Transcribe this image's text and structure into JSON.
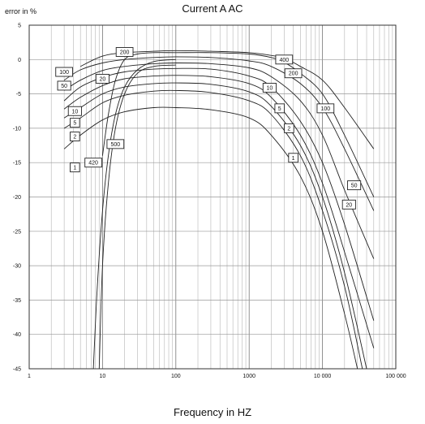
{
  "chart_data": {
    "type": "line",
    "title": "Current A AC",
    "ylabel": "error in %",
    "xlabel": "Frequency in HZ",
    "x_scale": "log",
    "xlim": [
      1,
      100000
    ],
    "ylim": [
      -45,
      5
    ],
    "grid": true,
    "x_ticks": [
      {
        "v": 1,
        "label": "1"
      },
      {
        "v": 10,
        "label": "10"
      },
      {
        "v": 100,
        "label": "100"
      },
      {
        "v": 1000,
        "label": "1000"
      },
      {
        "v": 10000,
        "label": "10 000"
      },
      {
        "v": 100000,
        "label": "100 000"
      }
    ],
    "y_ticks": [
      5,
      0,
      -5,
      -10,
      -15,
      -20,
      -25,
      -30,
      -35,
      -40,
      -45
    ],
    "series": [
      {
        "name": "400",
        "points": [
          [
            5,
            -1
          ],
          [
            10,
            0.5
          ],
          [
            20,
            1
          ],
          [
            50,
            1.2
          ],
          [
            100,
            1.3
          ],
          [
            300,
            1.2
          ],
          [
            1000,
            1
          ],
          [
            2000,
            0.6
          ],
          [
            3000,
            0.2
          ],
          [
            5000,
            -1
          ],
          [
            10000,
            -3
          ],
          [
            20000,
            -7
          ],
          [
            50000,
            -13
          ]
        ]
      },
      {
        "name": "200",
        "points": [
          [
            10,
            -14
          ],
          [
            12,
            -8
          ],
          [
            15,
            -3
          ],
          [
            20,
            0
          ],
          [
            30,
            0.8
          ],
          [
            50,
            1
          ],
          [
            100,
            1
          ],
          [
            300,
            1
          ],
          [
            1000,
            0.8
          ],
          [
            2000,
            0.3
          ],
          [
            3000,
            -0.4
          ],
          [
            5000,
            -2
          ],
          [
            10000,
            -5
          ],
          [
            20000,
            -11
          ],
          [
            50000,
            -20
          ]
        ]
      },
      {
        "name": "100",
        "points": [
          [
            3,
            -3
          ],
          [
            5,
            -1.5
          ],
          [
            10,
            -0.5
          ],
          [
            20,
            0
          ],
          [
            50,
            0.3
          ],
          [
            100,
            0.4
          ],
          [
            300,
            0.3
          ],
          [
            1000,
            -0.2
          ],
          [
            2000,
            -1
          ],
          [
            5000,
            -3.5
          ],
          [
            10000,
            -7
          ],
          [
            20000,
            -13
          ],
          [
            50000,
            -22
          ]
        ]
      },
      {
        "name": "50",
        "points": [
          [
            3,
            -4.5
          ],
          [
            5,
            -3
          ],
          [
            10,
            -1.6
          ],
          [
            20,
            -1
          ],
          [
            50,
            -0.6
          ],
          [
            100,
            -0.5
          ],
          [
            300,
            -0.6
          ],
          [
            1000,
            -1.2
          ],
          [
            2000,
            -2.5
          ],
          [
            5000,
            -6
          ],
          [
            10000,
            -11
          ],
          [
            20000,
            -19
          ],
          [
            50000,
            -29
          ]
        ]
      },
      {
        "name": "20",
        "points": [
          [
            3,
            -6
          ],
          [
            5,
            -4
          ],
          [
            10,
            -2.6
          ],
          [
            20,
            -1.8
          ],
          [
            50,
            -1.4
          ],
          [
            100,
            -1.3
          ],
          [
            300,
            -1.4
          ],
          [
            1000,
            -2.4
          ],
          [
            2000,
            -4
          ],
          [
            5000,
            -9
          ],
          [
            10000,
            -15
          ],
          [
            20000,
            -24
          ],
          [
            50000,
            -38
          ]
        ]
      },
      {
        "name": "10",
        "points": [
          [
            3,
            -7.2
          ],
          [
            5,
            -5.5
          ],
          [
            10,
            -3.8
          ],
          [
            20,
            -2.8
          ],
          [
            50,
            -2.4
          ],
          [
            100,
            -2.3
          ],
          [
            300,
            -2.5
          ],
          [
            1000,
            -3.5
          ],
          [
            2000,
            -5.5
          ],
          [
            5000,
            -11
          ],
          [
            10000,
            -18
          ],
          [
            20000,
            -28
          ],
          [
            50000,
            -42
          ]
        ]
      },
      {
        "name": "5",
        "points": [
          [
            3,
            -8.5
          ],
          [
            5,
            -7
          ],
          [
            10,
            -5
          ],
          [
            20,
            -4
          ],
          [
            50,
            -3.5
          ],
          [
            100,
            -3.4
          ],
          [
            300,
            -3.6
          ],
          [
            1000,
            -4.7
          ],
          [
            2000,
            -6.8
          ],
          [
            5000,
            -12.5
          ],
          [
            10000,
            -20
          ],
          [
            20000,
            -31
          ],
          [
            40000,
            -45
          ]
        ]
      },
      {
        "name": "2",
        "points": [
          [
            3,
            -10
          ],
          [
            5,
            -8.5
          ],
          [
            10,
            -6.3
          ],
          [
            20,
            -5.2
          ],
          [
            50,
            -4.6
          ],
          [
            100,
            -4.5
          ],
          [
            300,
            -4.8
          ],
          [
            1000,
            -6
          ],
          [
            2000,
            -8
          ],
          [
            5000,
            -14
          ],
          [
            10000,
            -22
          ],
          [
            20000,
            -33
          ],
          [
            35000,
            -45
          ]
        ]
      },
      {
        "name": "1",
        "points": [
          [
            3,
            -13
          ],
          [
            5,
            -11
          ],
          [
            10,
            -8.8
          ],
          [
            20,
            -7.6
          ],
          [
            50,
            -7
          ],
          [
            100,
            -7
          ],
          [
            300,
            -7.3
          ],
          [
            1000,
            -8.5
          ],
          [
            2000,
            -11
          ],
          [
            5000,
            -17
          ],
          [
            10000,
            -25
          ],
          [
            20000,
            -37
          ],
          [
            30000,
            -45
          ]
        ]
      },
      {
        "name": "500",
        "points": [
          [
            9,
            -45
          ],
          [
            10,
            -30
          ],
          [
            12,
            -18
          ],
          [
            15,
            -10
          ],
          [
            20,
            -5
          ],
          [
            30,
            -2
          ],
          [
            50,
            -1
          ],
          [
            100,
            -0.8
          ]
        ]
      },
      {
        "name": "400",
        "points": [
          [
            7.5,
            -45
          ],
          [
            8.5,
            -33
          ],
          [
            10,
            -22
          ],
          [
            12,
            -14
          ],
          [
            15,
            -8
          ],
          [
            20,
            -4
          ],
          [
            30,
            -1.5
          ],
          [
            50,
            -0.3
          ],
          [
            100,
            0
          ]
        ]
      }
    ],
    "labels": [
      {
        "text": "100",
        "x": 3,
        "y": -1.8
      },
      {
        "text": "50",
        "x": 3,
        "y": -3.8
      },
      {
        "text": "10",
        "x": 4.2,
        "y": -7.5
      },
      {
        "text": "5",
        "x": 4.2,
        "y": -9.2
      },
      {
        "text": "2",
        "x": 4.2,
        "y": -11.2
      },
      {
        "text": "1",
        "x": 4.2,
        "y": -15.7
      },
      {
        "text": "420",
        "x": 7.5,
        "y": -15
      },
      {
        "text": "500",
        "x": 15,
        "y": -12.3
      },
      {
        "text": "20",
        "x": 10,
        "y": -2.8
      },
      {
        "text": "200",
        "x": 20,
        "y": 1.1
      },
      {
        "text": "400",
        "x": 3000,
        "y": 0
      },
      {
        "text": "200",
        "x": 4000,
        "y": -2
      },
      {
        "text": "10",
        "x": 1900,
        "y": -4.1
      },
      {
        "text": "5",
        "x": 2600,
        "y": -7.1
      },
      {
        "text": "2",
        "x": 3500,
        "y": -10
      },
      {
        "text": "1",
        "x": 4000,
        "y": -14.3
      },
      {
        "text": "100",
        "x": 11000,
        "y": -7.1
      },
      {
        "text": "50",
        "x": 27000,
        "y": -18.3
      },
      {
        "text": "20",
        "x": 23000,
        "y": -21.1
      }
    ]
  }
}
